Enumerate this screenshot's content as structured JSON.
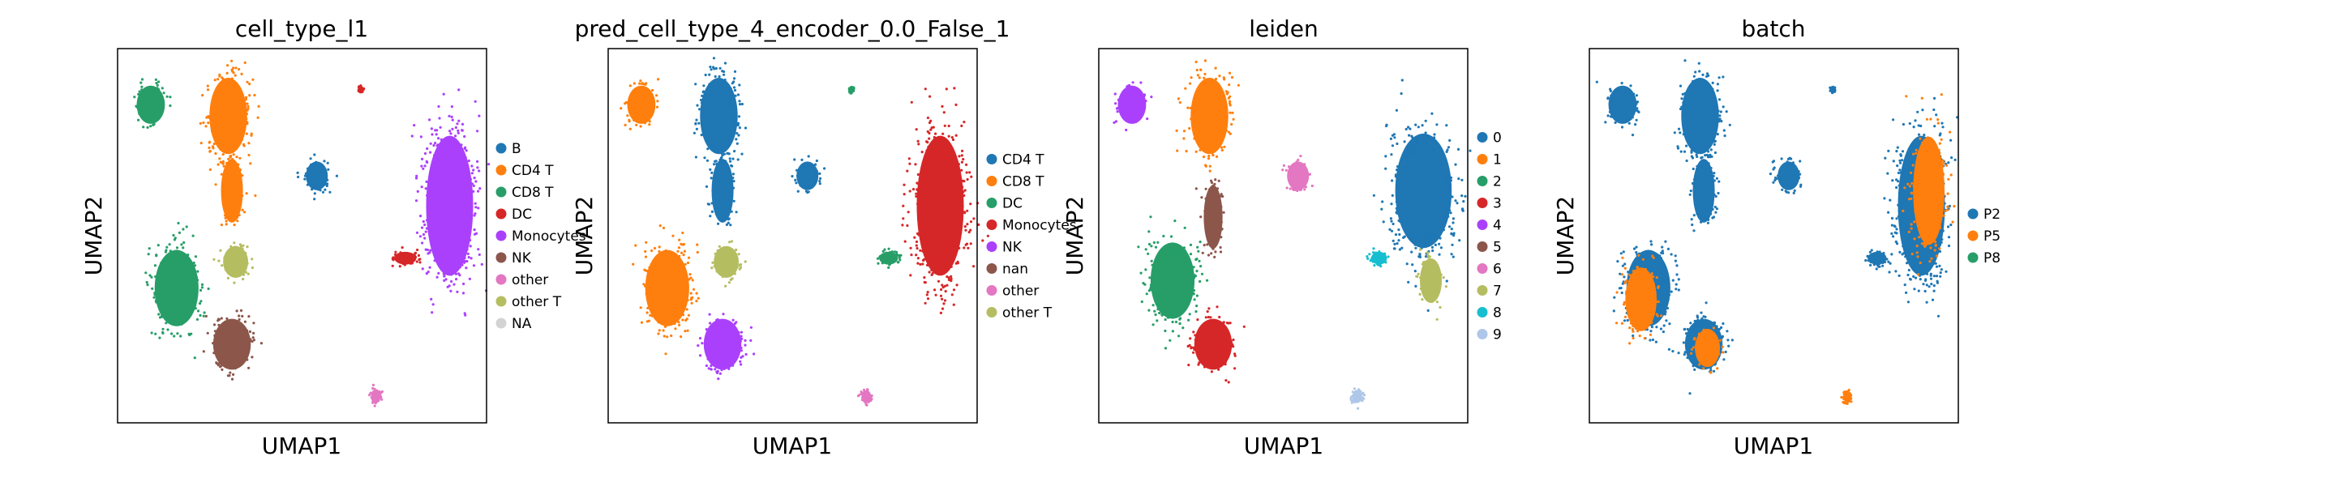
{
  "chart_data": [
    {
      "type": "scatter",
      "title": "cell_type_l1",
      "xlabel": "UMAP1",
      "ylabel": "UMAP2",
      "grid": false,
      "legend_placement": "right",
      "legend": [
        {
          "label": "B",
          "color": "#1f77b4"
        },
        {
          "label": "CD4 T",
          "color": "#ff7f0e"
        },
        {
          "label": "CD8 T",
          "color": "#279e68"
        },
        {
          "label": "DC",
          "color": "#d62728"
        },
        {
          "label": "Monocytes",
          "color": "#aa40fc"
        },
        {
          "label": "NK",
          "color": "#8c564b"
        },
        {
          "label": "other",
          "color": "#e377c2"
        },
        {
          "label": "other T",
          "color": "#b5bd61"
        },
        {
          "label": "NA",
          "color": "#d3d3d3"
        }
      ],
      "clusters": [
        {
          "label": "CD8 T",
          "color": "#279e68",
          "x": 0.09,
          "y": 0.85,
          "rx": 0.045,
          "ry": 0.06
        },
        {
          "label": "CD4 T",
          "color": "#ff7f0e",
          "x": 0.3,
          "y": 0.82,
          "rx": 0.06,
          "ry": 0.12
        },
        {
          "label": "CD4 T",
          "color": "#ff7f0e",
          "x": 0.31,
          "y": 0.62,
          "rx": 0.035,
          "ry": 0.1
        },
        {
          "label": "B",
          "color": "#1f77b4",
          "x": 0.54,
          "y": 0.66,
          "rx": 0.035,
          "ry": 0.045
        },
        {
          "label": "Monocytes",
          "color": "#aa40fc",
          "x": 0.9,
          "y": 0.58,
          "rx": 0.075,
          "ry": 0.22
        },
        {
          "label": "DC",
          "color": "#d62728",
          "x": 0.78,
          "y": 0.44,
          "rx": 0.035,
          "ry": 0.02
        },
        {
          "label": "other T",
          "color": "#b5bd61",
          "x": 0.32,
          "y": 0.43,
          "rx": 0.04,
          "ry": 0.05
        },
        {
          "label": "CD8 T",
          "color": "#279e68",
          "x": 0.16,
          "y": 0.36,
          "rx": 0.07,
          "ry": 0.12
        },
        {
          "label": "NK",
          "color": "#8c564b",
          "x": 0.31,
          "y": 0.21,
          "rx": 0.06,
          "ry": 0.08
        },
        {
          "label": "other",
          "color": "#e377c2",
          "x": 0.7,
          "y": 0.07,
          "rx": 0.015,
          "ry": 0.02
        },
        {
          "label": "DC",
          "color": "#d62728",
          "x": 0.66,
          "y": 0.89,
          "rx": 0.006,
          "ry": 0.008
        }
      ]
    },
    {
      "type": "scatter",
      "title": "pred_cell_type_4_encoder_0.0_False_1",
      "xlabel": "UMAP1",
      "ylabel": "UMAP2",
      "grid": false,
      "legend_placement": "right",
      "legend": [
        {
          "label": "CD4 T",
          "color": "#1f77b4"
        },
        {
          "label": "CD8 T",
          "color": "#ff7f0e"
        },
        {
          "label": "DC",
          "color": "#279e68"
        },
        {
          "label": "Monocytes",
          "color": "#d62728"
        },
        {
          "label": "NK",
          "color": "#aa40fc"
        },
        {
          "label": "nan",
          "color": "#8c564b"
        },
        {
          "label": "other",
          "color": "#e377c2"
        },
        {
          "label": "other T",
          "color": "#b5bd61"
        }
      ],
      "clusters": [
        {
          "label": "CD8 T",
          "color": "#ff7f0e",
          "x": 0.09,
          "y": 0.85,
          "rx": 0.045,
          "ry": 0.06
        },
        {
          "label": "CD4 T",
          "color": "#1f77b4",
          "x": 0.3,
          "y": 0.82,
          "rx": 0.06,
          "ry": 0.12
        },
        {
          "label": "CD4 T",
          "color": "#1f77b4",
          "x": 0.31,
          "y": 0.62,
          "rx": 0.035,
          "ry": 0.1
        },
        {
          "label": "CD4 T",
          "color": "#1f77b4",
          "x": 0.54,
          "y": 0.66,
          "rx": 0.035,
          "ry": 0.045
        },
        {
          "label": "Monocytes",
          "color": "#d62728",
          "x": 0.9,
          "y": 0.58,
          "rx": 0.075,
          "ry": 0.22
        },
        {
          "label": "DC",
          "color": "#279e68",
          "x": 0.76,
          "y": 0.44,
          "rx": 0.03,
          "ry": 0.02
        },
        {
          "label": "other T",
          "color": "#b5bd61",
          "x": 0.32,
          "y": 0.43,
          "rx": 0.04,
          "ry": 0.05
        },
        {
          "label": "CD8 T",
          "color": "#ff7f0e",
          "x": 0.16,
          "y": 0.36,
          "rx": 0.07,
          "ry": 0.12
        },
        {
          "label": "NK",
          "color": "#aa40fc",
          "x": 0.31,
          "y": 0.21,
          "rx": 0.06,
          "ry": 0.08
        },
        {
          "label": "other",
          "color": "#e377c2",
          "x": 0.7,
          "y": 0.07,
          "rx": 0.015,
          "ry": 0.02
        },
        {
          "label": "DC",
          "color": "#279e68",
          "x": 0.66,
          "y": 0.89,
          "rx": 0.006,
          "ry": 0.008
        }
      ]
    },
    {
      "type": "scatter",
      "title": "leiden",
      "xlabel": "UMAP1",
      "ylabel": "UMAP2",
      "grid": false,
      "legend_placement": "right",
      "legend": [
        {
          "label": "0",
          "color": "#1f77b4"
        },
        {
          "label": "1",
          "color": "#ff7f0e"
        },
        {
          "label": "2",
          "color": "#279e68"
        },
        {
          "label": "3",
          "color": "#d62728"
        },
        {
          "label": "4",
          "color": "#aa40fc"
        },
        {
          "label": "5",
          "color": "#8c564b"
        },
        {
          "label": "6",
          "color": "#e377c2"
        },
        {
          "label": "7",
          "color": "#b5bd61"
        },
        {
          "label": "8",
          "color": "#17becf"
        },
        {
          "label": "9",
          "color": "#aec7e8"
        }
      ],
      "clusters": [
        {
          "label": "4",
          "color": "#aa40fc",
          "x": 0.09,
          "y": 0.85,
          "rx": 0.045,
          "ry": 0.06
        },
        {
          "label": "1",
          "color": "#ff7f0e",
          "x": 0.3,
          "y": 0.82,
          "rx": 0.06,
          "ry": 0.12
        },
        {
          "label": "5",
          "color": "#8c564b",
          "x": 0.31,
          "y": 0.55,
          "rx": 0.03,
          "ry": 0.1
        },
        {
          "label": "6",
          "color": "#e377c2",
          "x": 0.54,
          "y": 0.66,
          "rx": 0.035,
          "ry": 0.045
        },
        {
          "label": "0",
          "color": "#1f77b4",
          "x": 0.88,
          "y": 0.62,
          "rx": 0.09,
          "ry": 0.18
        },
        {
          "label": "7",
          "color": "#b5bd61",
          "x": 0.9,
          "y": 0.38,
          "rx": 0.035,
          "ry": 0.07
        },
        {
          "label": "8",
          "color": "#17becf",
          "x": 0.76,
          "y": 0.44,
          "rx": 0.025,
          "ry": 0.02
        },
        {
          "label": "2",
          "color": "#279e68",
          "x": 0.2,
          "y": 0.38,
          "rx": 0.07,
          "ry": 0.12
        },
        {
          "label": "3",
          "color": "#d62728",
          "x": 0.31,
          "y": 0.21,
          "rx": 0.06,
          "ry": 0.08
        },
        {
          "label": "9",
          "color": "#aec7e8",
          "x": 0.7,
          "y": 0.07,
          "rx": 0.015,
          "ry": 0.02
        }
      ]
    },
    {
      "type": "scatter",
      "title": "batch",
      "xlabel": "UMAP1",
      "ylabel": "UMAP2",
      "grid": false,
      "legend_placement": "right",
      "legend": [
        {
          "label": "P2",
          "color": "#1f77b4"
        },
        {
          "label": "P5",
          "color": "#ff7f0e"
        },
        {
          "label": "P8",
          "color": "#279e68"
        }
      ],
      "clusters": [
        {
          "label": "P2",
          "color": "#1f77b4",
          "x": 0.09,
          "y": 0.85,
          "rx": 0.045,
          "ry": 0.06
        },
        {
          "label": "P2",
          "color": "#1f77b4",
          "x": 0.3,
          "y": 0.82,
          "rx": 0.06,
          "ry": 0.12
        },
        {
          "label": "P2",
          "color": "#1f77b4",
          "x": 0.31,
          "y": 0.62,
          "rx": 0.035,
          "ry": 0.1
        },
        {
          "label": "P2",
          "color": "#1f77b4",
          "x": 0.54,
          "y": 0.66,
          "rx": 0.035,
          "ry": 0.045
        },
        {
          "label": "P2",
          "color": "#1f77b4",
          "x": 0.9,
          "y": 0.58,
          "rx": 0.075,
          "ry": 0.22
        },
        {
          "label": "P5",
          "color": "#ff7f0e",
          "x": 0.92,
          "y": 0.62,
          "rx": 0.05,
          "ry": 0.17
        },
        {
          "label": "P2",
          "color": "#1f77b4",
          "x": 0.78,
          "y": 0.44,
          "rx": 0.03,
          "ry": 0.02
        },
        {
          "label": "P2",
          "color": "#1f77b4",
          "x": 0.16,
          "y": 0.36,
          "rx": 0.07,
          "ry": 0.12
        },
        {
          "label": "P5",
          "color": "#ff7f0e",
          "x": 0.14,
          "y": 0.33,
          "rx": 0.05,
          "ry": 0.1
        },
        {
          "label": "P2",
          "color": "#1f77b4",
          "x": 0.31,
          "y": 0.21,
          "rx": 0.06,
          "ry": 0.08
        },
        {
          "label": "P5",
          "color": "#ff7f0e",
          "x": 0.32,
          "y": 0.2,
          "rx": 0.04,
          "ry": 0.06
        },
        {
          "label": "P5",
          "color": "#ff7f0e",
          "x": 0.7,
          "y": 0.07,
          "rx": 0.012,
          "ry": 0.018
        },
        {
          "label": "P2",
          "color": "#1f77b4",
          "x": 0.66,
          "y": 0.89,
          "rx": 0.006,
          "ry": 0.008
        }
      ]
    }
  ]
}
